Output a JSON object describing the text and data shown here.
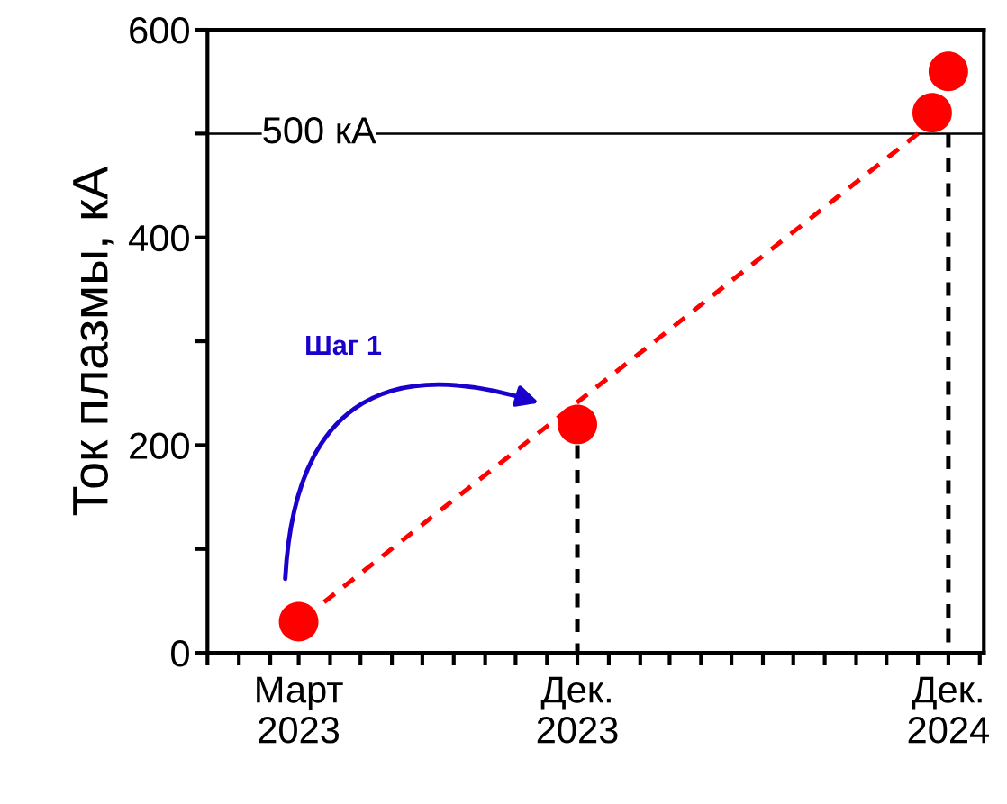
{
  "chart_data": {
    "type": "scatter",
    "ylabel": "Ток плазмы, кА",
    "x": [
      "2023-03",
      "2023-12",
      "2024-11-15",
      "2024-12"
    ],
    "series": [
      {
        "type": "line",
        "color": "#ff0000",
        "x": [
          "2023-03-25",
          "2024-11-01"
        ],
        "values": [
          48,
          500
        ],
        "marker": "none",
        "line_style": "dashed"
      },
      {
        "color": "#ff0000",
        "values": [
          30,
          220,
          520,
          560
        ],
        "marker": "circle"
      },
      {
        "type": "line",
        "color": "#000000",
        "x": [
          "2023-12",
          "2023-12"
        ],
        "values": [
          0,
          200
        ],
        "marker": "none",
        "line_style": "dashed"
      },
      {
        "type": "line",
        "color": "#000000",
        "x": [
          "2024-12",
          "2024-12"
        ],
        "values": [
          0,
          500
        ],
        "marker": "none",
        "line_style": "dashed"
      }
    ],
    "ref_lines": [
      {
        "axis": "y",
        "value": 500,
        "label": "500 кА",
        "color": "#000000",
        "line_style": "solid"
      }
    ],
    "annotations": [
      "Шаг 1"
    ],
    "ylim": [
      0,
      600
    ],
    "yticks": [
      0,
      {
        "value": 100,
        "label": null
      },
      200,
      {
        "value": 300,
        "label": null
      },
      400,
      {
        "value": 500,
        "label": null
      },
      600
    ],
    "xlim": [
      "2022-12-01",
      "2025-01-05"
    ],
    "xticks": [
      {
        "value": "2022-12",
        "label": null
      },
      {
        "value": "2023-01",
        "label": null
      },
      {
        "value": "2023-02",
        "label": null
      },
      {
        "value": "2023-03",
        "label": "Март\n2023"
      },
      {
        "value": "2023-04",
        "label": null
      },
      {
        "value": "2023-05",
        "label": null
      },
      {
        "value": "2023-06",
        "label": null
      },
      {
        "value": "2023-07",
        "label": null
      },
      {
        "value": "2023-08",
        "label": null
      },
      {
        "value": "2023-09",
        "label": null
      },
      {
        "value": "2023-10",
        "label": null
      },
      {
        "value": "2023-11",
        "label": null
      },
      {
        "value": "2023-12",
        "label": "Дек.\n2023"
      },
      {
        "value": "2024-01",
        "label": null
      },
      {
        "value": "2024-02",
        "label": null
      },
      {
        "value": "2024-03",
        "label": null
      },
      {
        "value": "2024-04",
        "label": null
      },
      {
        "value": "2024-05",
        "label": null
      },
      {
        "value": "2024-06",
        "label": null
      },
      {
        "value": "2024-07",
        "label": null
      },
      {
        "value": "2024-08",
        "label": null
      },
      {
        "value": "2024-09",
        "label": null
      },
      {
        "value": "2024-10",
        "label": null
      },
      {
        "value": "2024-11",
        "label": null
      },
      {
        "value": "2024-12",
        "label": "Дек.\n2024"
      },
      {
        "value": "2025-01",
        "label": null
      }
    ]
  }
}
